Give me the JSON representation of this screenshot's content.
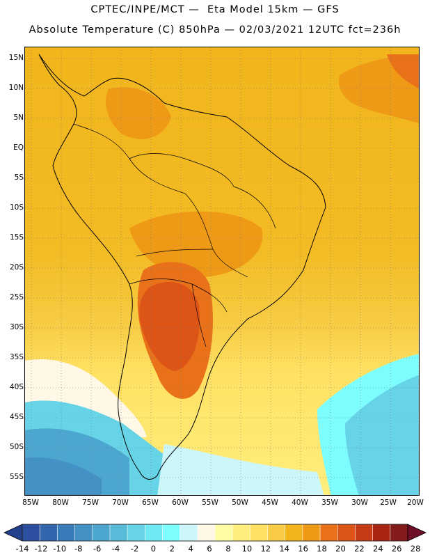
{
  "header": {
    "line1": "CPTEC/INPE/MCT —  Eta Model 15km — GFS",
    "line2": "Absolute Temperature (C) 850hPa — 02/03/2021 12UTC fct=236h"
  },
  "map": {
    "lat_labels": [
      "15N",
      "10N",
      "5N",
      "EQ",
      "5S",
      "10S",
      "15S",
      "20S",
      "25S",
      "30S",
      "35S",
      "40S",
      "45S",
      "50S",
      "55S"
    ],
    "lon_labels": [
      "85W",
      "80W",
      "75W",
      "70W",
      "65W",
      "60W",
      "55W",
      "50W",
      "45W",
      "40W",
      "35W",
      "30W",
      "25W",
      "20W"
    ]
  },
  "colorbar": {
    "labels": [
      "-14",
      "-12",
      "-10",
      "-8",
      "-6",
      "-4",
      "-2",
      "0",
      "2",
      "4",
      "6",
      "8",
      "10",
      "12",
      "14",
      "16",
      "18",
      "20",
      "22",
      "24",
      "26",
      "28"
    ],
    "colors": [
      "#2c4fa0",
      "#3266ad",
      "#3a7cba",
      "#4391c5",
      "#4ca6cf",
      "#58bcd9",
      "#66d3e6",
      "#6fe9f2",
      "#7dfdfd",
      "#cdf6fb",
      "#fff8e6",
      "#fffca6",
      "#ffee7e",
      "#ffe162",
      "#f7cc44",
      "#f2b51c",
      "#ef9a16",
      "#e9711a",
      "#dd5417",
      "#c83b17",
      "#a82413",
      "#841a1a"
    ],
    "under_color": "#22408d",
    "over_color": "#6e0f28"
  }
}
